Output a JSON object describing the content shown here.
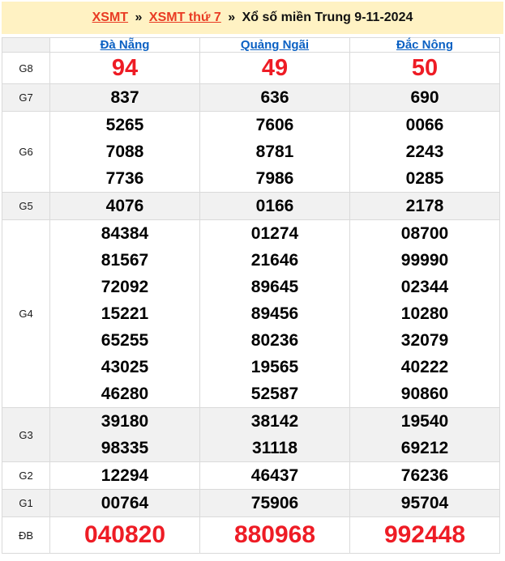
{
  "breadcrumb": {
    "links": [
      "XSMT",
      "XSMT thứ 7"
    ],
    "separator": "»",
    "current": "Xổ số miền Trung 9-11-2024"
  },
  "colors": {
    "breadcrumb_bg": "#fff2c3",
    "breadcrumb_link_red": "#e93b23",
    "prize_number_red": "#ee1c25",
    "column_link_blue": "#0b61c3",
    "alt_row_bg": "#f1f1f1",
    "table_border": "#dadada"
  },
  "table": {
    "columns": [
      "Đà Nẵng",
      "Quảng Ngãi",
      "Đắc Nông"
    ],
    "rows": [
      {
        "label": "G8",
        "highlight": true,
        "cells": [
          [
            "94"
          ],
          [
            "49"
          ],
          [
            "50"
          ]
        ]
      },
      {
        "label": "G7",
        "cells": [
          [
            "837"
          ],
          [
            "636"
          ],
          [
            "690"
          ]
        ]
      },
      {
        "label": "G6",
        "cells": [
          [
            "5265",
            "7088",
            "7736"
          ],
          [
            "7606",
            "8781",
            "7986"
          ],
          [
            "0066",
            "2243",
            "0285"
          ]
        ]
      },
      {
        "label": "G5",
        "cells": [
          [
            "4076"
          ],
          [
            "0166"
          ],
          [
            "2178"
          ]
        ]
      },
      {
        "label": "G4",
        "cells": [
          [
            "84384",
            "81567",
            "72092",
            "15221",
            "65255",
            "43025",
            "46280"
          ],
          [
            "01274",
            "21646",
            "89645",
            "89456",
            "80236",
            "19565",
            "52587"
          ],
          [
            "08700",
            "99990",
            "02344",
            "10280",
            "32079",
            "40222",
            "90860"
          ]
        ]
      },
      {
        "label": "G3",
        "cells": [
          [
            "39180",
            "98335"
          ],
          [
            "38142",
            "31118"
          ],
          [
            "19540",
            "69212"
          ]
        ]
      },
      {
        "label": "G2",
        "cells": [
          [
            "12294"
          ],
          [
            "46437"
          ],
          [
            "76236"
          ]
        ]
      },
      {
        "label": "G1",
        "cells": [
          [
            "00764"
          ],
          [
            "75906"
          ],
          [
            "95704"
          ]
        ]
      },
      {
        "label": "ĐB",
        "highlight": true,
        "cells": [
          [
            "040820"
          ],
          [
            "880968"
          ],
          [
            "992448"
          ]
        ]
      }
    ]
  }
}
